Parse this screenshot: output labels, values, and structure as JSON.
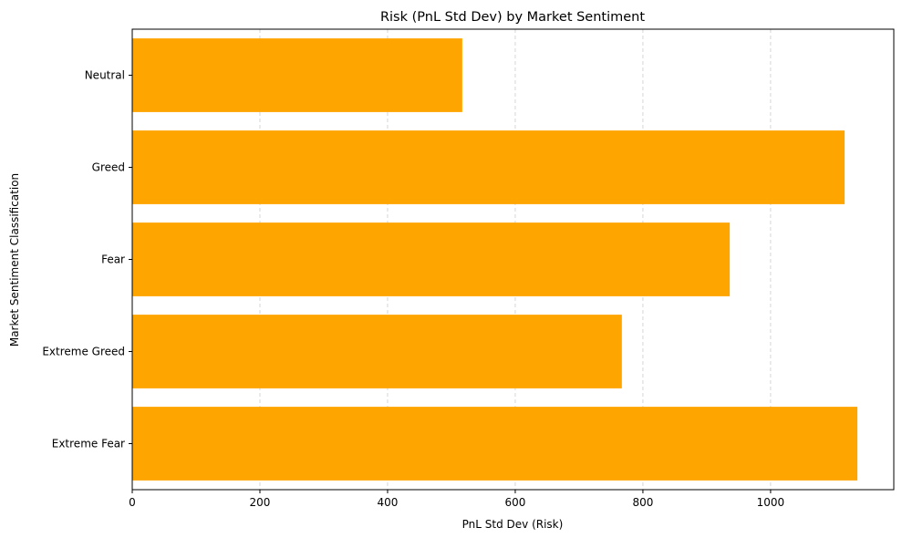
{
  "chart_data": {
    "type": "bar",
    "orientation": "horizontal",
    "title": "Risk (PnL Std Dev) by Market Sentiment",
    "xlabel": "PnL Std Dev (Risk)",
    "ylabel": "Market Sentiment Classification",
    "categories": [
      "Extreme Fear",
      "Extreme Greed",
      "Fear",
      "Greed",
      "Neutral"
    ],
    "values": [
      1136,
      767,
      936,
      1116,
      517
    ],
    "xlim": [
      0,
      1193
    ],
    "xticks": [
      0,
      200,
      400,
      600,
      800,
      1000
    ],
    "grid": "x-axis dashed",
    "bar_color": "#ffa500",
    "grid_color": "#cccccc",
    "legend": "none"
  }
}
